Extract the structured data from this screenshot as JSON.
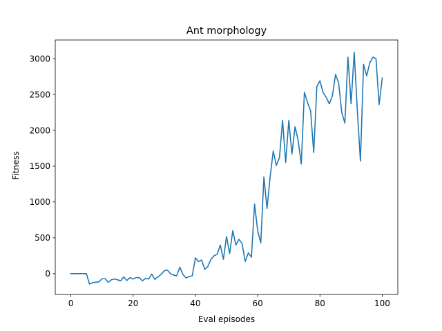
{
  "chart_data": {
    "type": "line",
    "title": "Ant morphology",
    "xlabel": "Eval episodes",
    "ylabel": "Fitness",
    "xlim": [
      -5,
      105
    ],
    "ylim": [
      -290,
      3260
    ],
    "xticks": [
      0,
      20,
      40,
      60,
      80,
      100
    ],
    "yticks": [
      0,
      500,
      1000,
      1500,
      2000,
      2500,
      3000
    ],
    "grid": false,
    "legend": "none",
    "colors": {
      "line": "#1f77b4",
      "axes": "#000000",
      "background": "#ffffff"
    },
    "series": [
      {
        "x": [
          0,
          1,
          2,
          3,
          4,
          5,
          6,
          7,
          8,
          9,
          10,
          11,
          12,
          13,
          14,
          15,
          16,
          17,
          18,
          19,
          20,
          21,
          22,
          23,
          24,
          25,
          26,
          27,
          28,
          29,
          30,
          31,
          32,
          33,
          34,
          35,
          36,
          37,
          38,
          39,
          40,
          41,
          42,
          43,
          44,
          45,
          46,
          47,
          48,
          49,
          50,
          51,
          52,
          53,
          54,
          55,
          56,
          57,
          58,
          59,
          60,
          61,
          62,
          63,
          64,
          65,
          66,
          67,
          68,
          69,
          70,
          71,
          72,
          73,
          74,
          75,
          76,
          77,
          78,
          79,
          80,
          81,
          82,
          83,
          84,
          85,
          86,
          87,
          88,
          89,
          90,
          91,
          92,
          93,
          94,
          95,
          96,
          97,
          98,
          99,
          100
        ],
        "values": [
          0,
          0,
          0,
          0,
          0,
          0,
          -145,
          -125,
          -120,
          -115,
          -70,
          -70,
          -120,
          -85,
          -75,
          -85,
          -100,
          -45,
          -95,
          -55,
          -75,
          -55,
          -55,
          -100,
          -65,
          -75,
          -5,
          -80,
          -45,
          -10,
          40,
          50,
          0,
          -20,
          -30,
          90,
          -10,
          -60,
          -40,
          -30,
          220,
          170,
          190,
          60,
          100,
          200,
          250,
          270,
          400,
          200,
          520,
          280,
          600,
          400,
          480,
          420,
          170,
          290,
          230,
          970,
          600,
          430,
          1350,
          910,
          1350,
          1710,
          1510,
          1620,
          2140,
          1550,
          2140,
          1670,
          2050,
          1860,
          1530,
          2530,
          2390,
          2270,
          1690,
          2610,
          2690,
          2530,
          2460,
          2370,
          2480,
          2780,
          2660,
          2250,
          2100,
          3020,
          2370,
          3090,
          2280,
          1570,
          2920,
          2760,
          2940,
          3020,
          3000,
          2360,
          2730
        ]
      }
    ]
  }
}
